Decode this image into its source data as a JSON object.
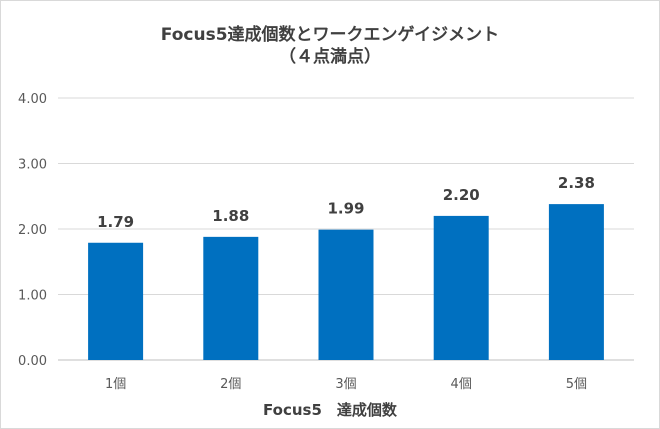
{
  "chart_data": {
    "type": "bar",
    "title": "Focus5達成個数とワークエンゲイジメント",
    "subtitle": "（４点満点）",
    "xlabel": "Focus5　達成個数",
    "ylabel": "",
    "categories": [
      "1個",
      "2個",
      "3個",
      "4個",
      "5個"
    ],
    "values": [
      1.79,
      1.88,
      1.99,
      2.2,
      2.38
    ],
    "data_labels": [
      "1.79",
      "1.88",
      "1.99",
      "2.20",
      "2.38"
    ],
    "yticks": [
      "0.00",
      "1.00",
      "2.00",
      "3.00",
      "4.00"
    ],
    "ylim": [
      0,
      4
    ],
    "grid": true,
    "legend": "none",
    "bar_color": "#0070c0"
  }
}
